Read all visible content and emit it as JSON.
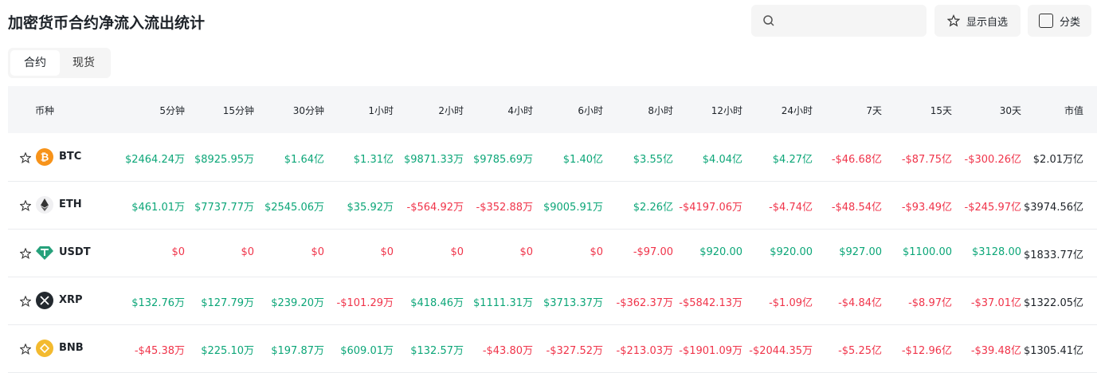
{
  "header": {
    "title": "加密货币合约净流入流出统计",
    "buttons": [
      "显示自选",
      "分类"
    ]
  },
  "tabs": [
    "合约",
    "现货"
  ],
  "table": {
    "columns": [
      "币种",
      "5分钟",
      "15分钟",
      "30分钟",
      "1小时",
      "2小时",
      "4小时",
      "6小时",
      "8小时",
      "12小时",
      "24小时",
      "7天",
      "15天",
      "30天",
      "市值"
    ],
    "rows": [
      [
        "BTC",
        "$2464.24万",
        "$8925.95万",
        "$1.64亿",
        "$1.31亿",
        "$9871.33万",
        "$9785.69万",
        "$1.40亿",
        "$3.55亿",
        "$4.04亿",
        "$4.27亿",
        "-$46.68亿",
        "-$87.75亿",
        "-$300.26亿",
        "$2.01万亿"
      ],
      [
        "ETH",
        "$461.01万",
        "$7737.77万",
        "$2545.06万",
        "$35.92万",
        "-$564.92万",
        "-$352.88万",
        "$9005.91万",
        "$2.26亿",
        "-$4197.06万",
        "-$4.74亿",
        "-$48.54亿",
        "-$93.49亿",
        "-$245.97亿",
        "$3974.56亿"
      ],
      [
        "USDT",
        "$0",
        "$0",
        "$0",
        "$0",
        "$0",
        "$0",
        "$0",
        "-$97.00",
        "$920.00",
        "$920.00",
        "$927.00",
        "$1100.00",
        "$3128.00",
        "$1833.77亿"
      ],
      [
        "XRP",
        "$132.76万",
        "$127.79万",
        "$239.20万",
        "-$101.29万",
        "$418.46万",
        "$1111.31万",
        "$3713.37万",
        "-$362.37万",
        "-$5842.13万",
        "-$1.09亿",
        "-$4.84亿",
        "-$8.97亿",
        "-$37.01亿",
        "$1322.05亿"
      ],
      [
        "BNB",
        "-$45.38万",
        "$225.10万",
        "$197.87万",
        "$609.01万",
        "$132.57万",
        "-$43.80万",
        "-$327.52万",
        "-$213.03万",
        "-$1901.09万",
        "-$2044.35万",
        "-$5.25亿",
        "-$12.96亿",
        "-$39.48亿",
        "$1305.41亿"
      ]
    ]
  }
}
